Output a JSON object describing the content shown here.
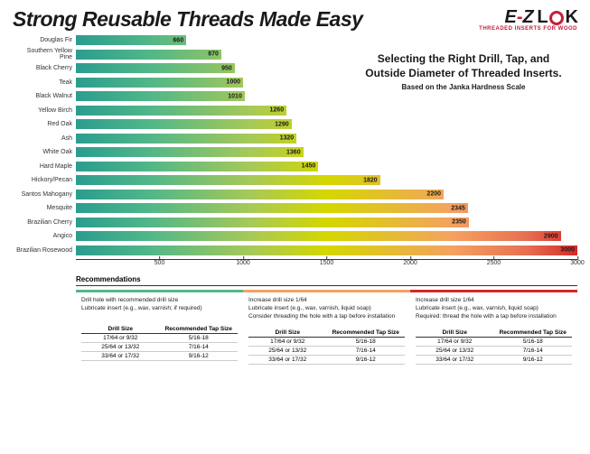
{
  "header": {
    "title": "Strong Reusable Threads Made Easy",
    "logo_e": "E",
    "logo_hyphen": "-",
    "logo_z": "Z",
    "logo_lok": "L   K",
    "logo_tagline": "THREADED INSERTS FOR WOOD"
  },
  "subtitle": {
    "line1": "Selecting the Right Drill, Tap, and Outside Diameter of Threaded Inserts.",
    "line2": "Based on the Janka Hardness Scale"
  },
  "chart": {
    "type": "bar",
    "xmax": 3000,
    "ticks": [
      500,
      1000,
      1500,
      2000,
      2500,
      3000
    ],
    "bar_gradient_colors": [
      "#2a9d8f",
      "#52b788",
      "#a7c957",
      "#d4d700",
      "#f4a261",
      "#e76f51",
      "#d62828"
    ],
    "background_color": "#ffffff",
    "label_fontsize": 7,
    "value_fontsize": 7,
    "bars": [
      {
        "label": "Douglas Fir",
        "value": 660
      },
      {
        "label": "Southern Yellow Pine",
        "value": 870
      },
      {
        "label": "Black Cherry",
        "value": 950
      },
      {
        "label": "Teak",
        "value": 1000
      },
      {
        "label": "Black Walnut",
        "value": 1010
      },
      {
        "label": "Yellow Birch",
        "value": 1260
      },
      {
        "label": "Red Oak",
        "value": 1290
      },
      {
        "label": "Ash",
        "value": 1320
      },
      {
        "label": "White Oak",
        "value": 1360
      },
      {
        "label": "Hard Maple",
        "value": 1450
      },
      {
        "label": "Hickory/Pecan",
        "value": 1820
      },
      {
        "label": "Santos Mahogany",
        "value": 2200
      },
      {
        "label": "Mesquite",
        "value": 2345
      },
      {
        "label": "Brazilian Cherry",
        "value": 2350
      },
      {
        "label": "Angico",
        "value": 2900
      },
      {
        "label": "Brazilian Rosewood",
        "value": 3000
      }
    ]
  },
  "recommendations": {
    "heading": "Recommendations",
    "col_border_colors": [
      "#52b788",
      "#f4a261",
      "#d62828"
    ],
    "columns": [
      {
        "lines": [
          "Drill hole with recommended drill size",
          "Lubricate insert (e.g., wax, varnish; if required)"
        ]
      },
      {
        "lines": [
          "Increase drill size 1/64",
          "Lubricate insert (e.g., wax, varnish, liquid soap)",
          "Consider threading the hole with a tap before installation"
        ]
      },
      {
        "lines": [
          "Increase drill size 1/64",
          "Lubricate insert (e.g., wax, varnish, liquid soap)",
          "Required: thread the hole with a tap before installation"
        ]
      }
    ],
    "table_headers": {
      "h1": "Drill Size",
      "h2": "Recommended Tap Size"
    },
    "table_rows": [
      {
        "drill": "17/64 or 9/32",
        "tap": "5/16-18"
      },
      {
        "drill": "25/64 or 13/32",
        "tap": "7/16-14"
      },
      {
        "drill": "33/64 or 17/32",
        "tap": "9/16-12"
      }
    ]
  }
}
